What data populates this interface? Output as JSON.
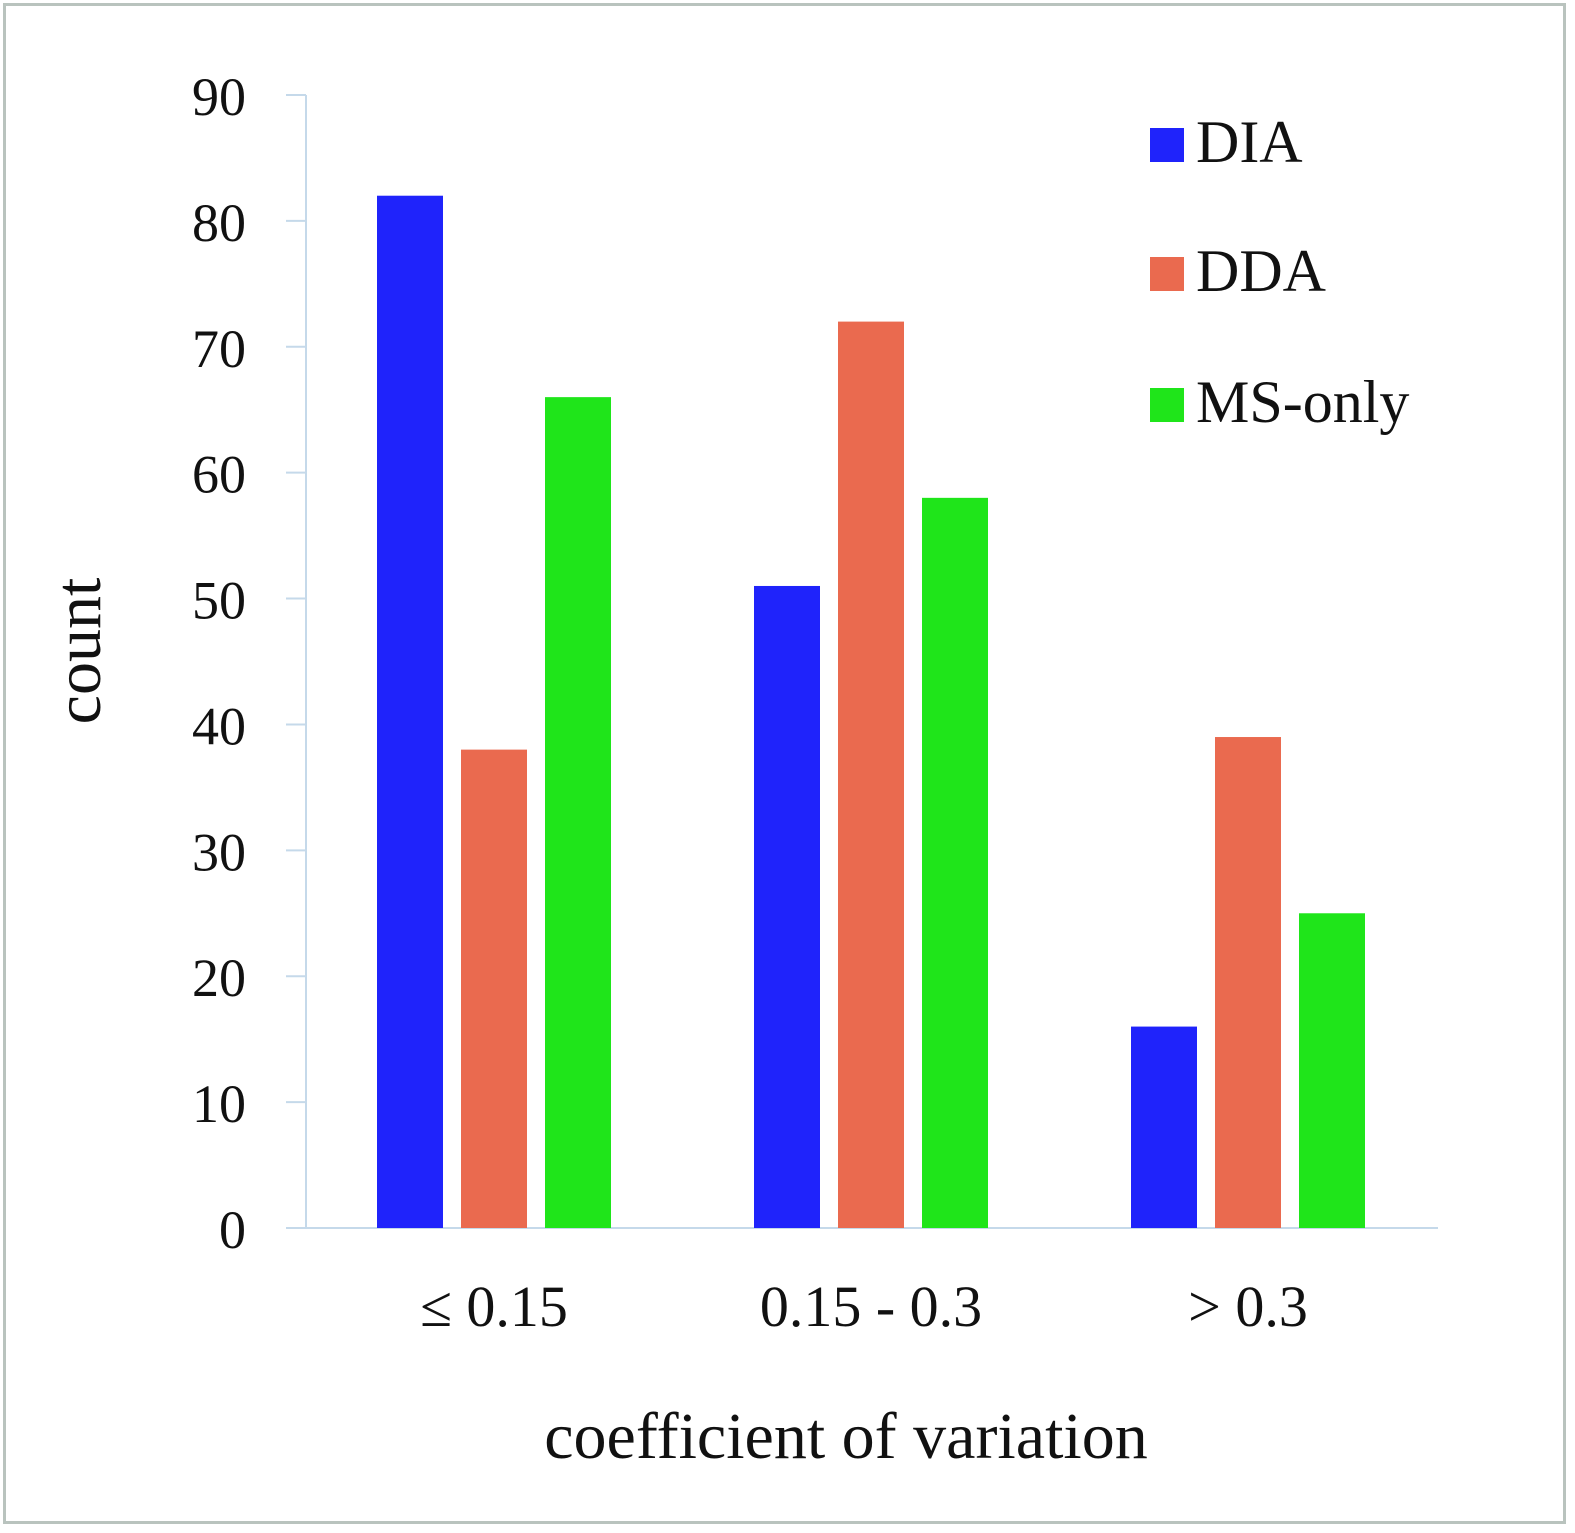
{
  "chart_data": {
    "type": "bar",
    "title": "",
    "xlabel": "coefficient of variation",
    "ylabel": "count",
    "categories": [
      "≤ 0.15",
      "0.15 - 0.3",
      "> 0.3"
    ],
    "series": [
      {
        "name": "DIA",
        "color": "#1f23fb",
        "values": [
          82,
          51,
          16
        ]
      },
      {
        "name": "DDA",
        "color": "#ea6a4f",
        "values": [
          38,
          72,
          39
        ]
      },
      {
        "name": "MS-only",
        "color": "#1fe51a",
        "values": [
          66,
          58,
          25
        ]
      }
    ],
    "ylim": [
      0,
      90
    ],
    "yticks": [
      0,
      10,
      20,
      30,
      40,
      50,
      60,
      70,
      80,
      90
    ],
    "grid": false,
    "legend": "top-right",
    "axis_color": "#c5d9ea",
    "frame_color": "#b9c3be"
  }
}
